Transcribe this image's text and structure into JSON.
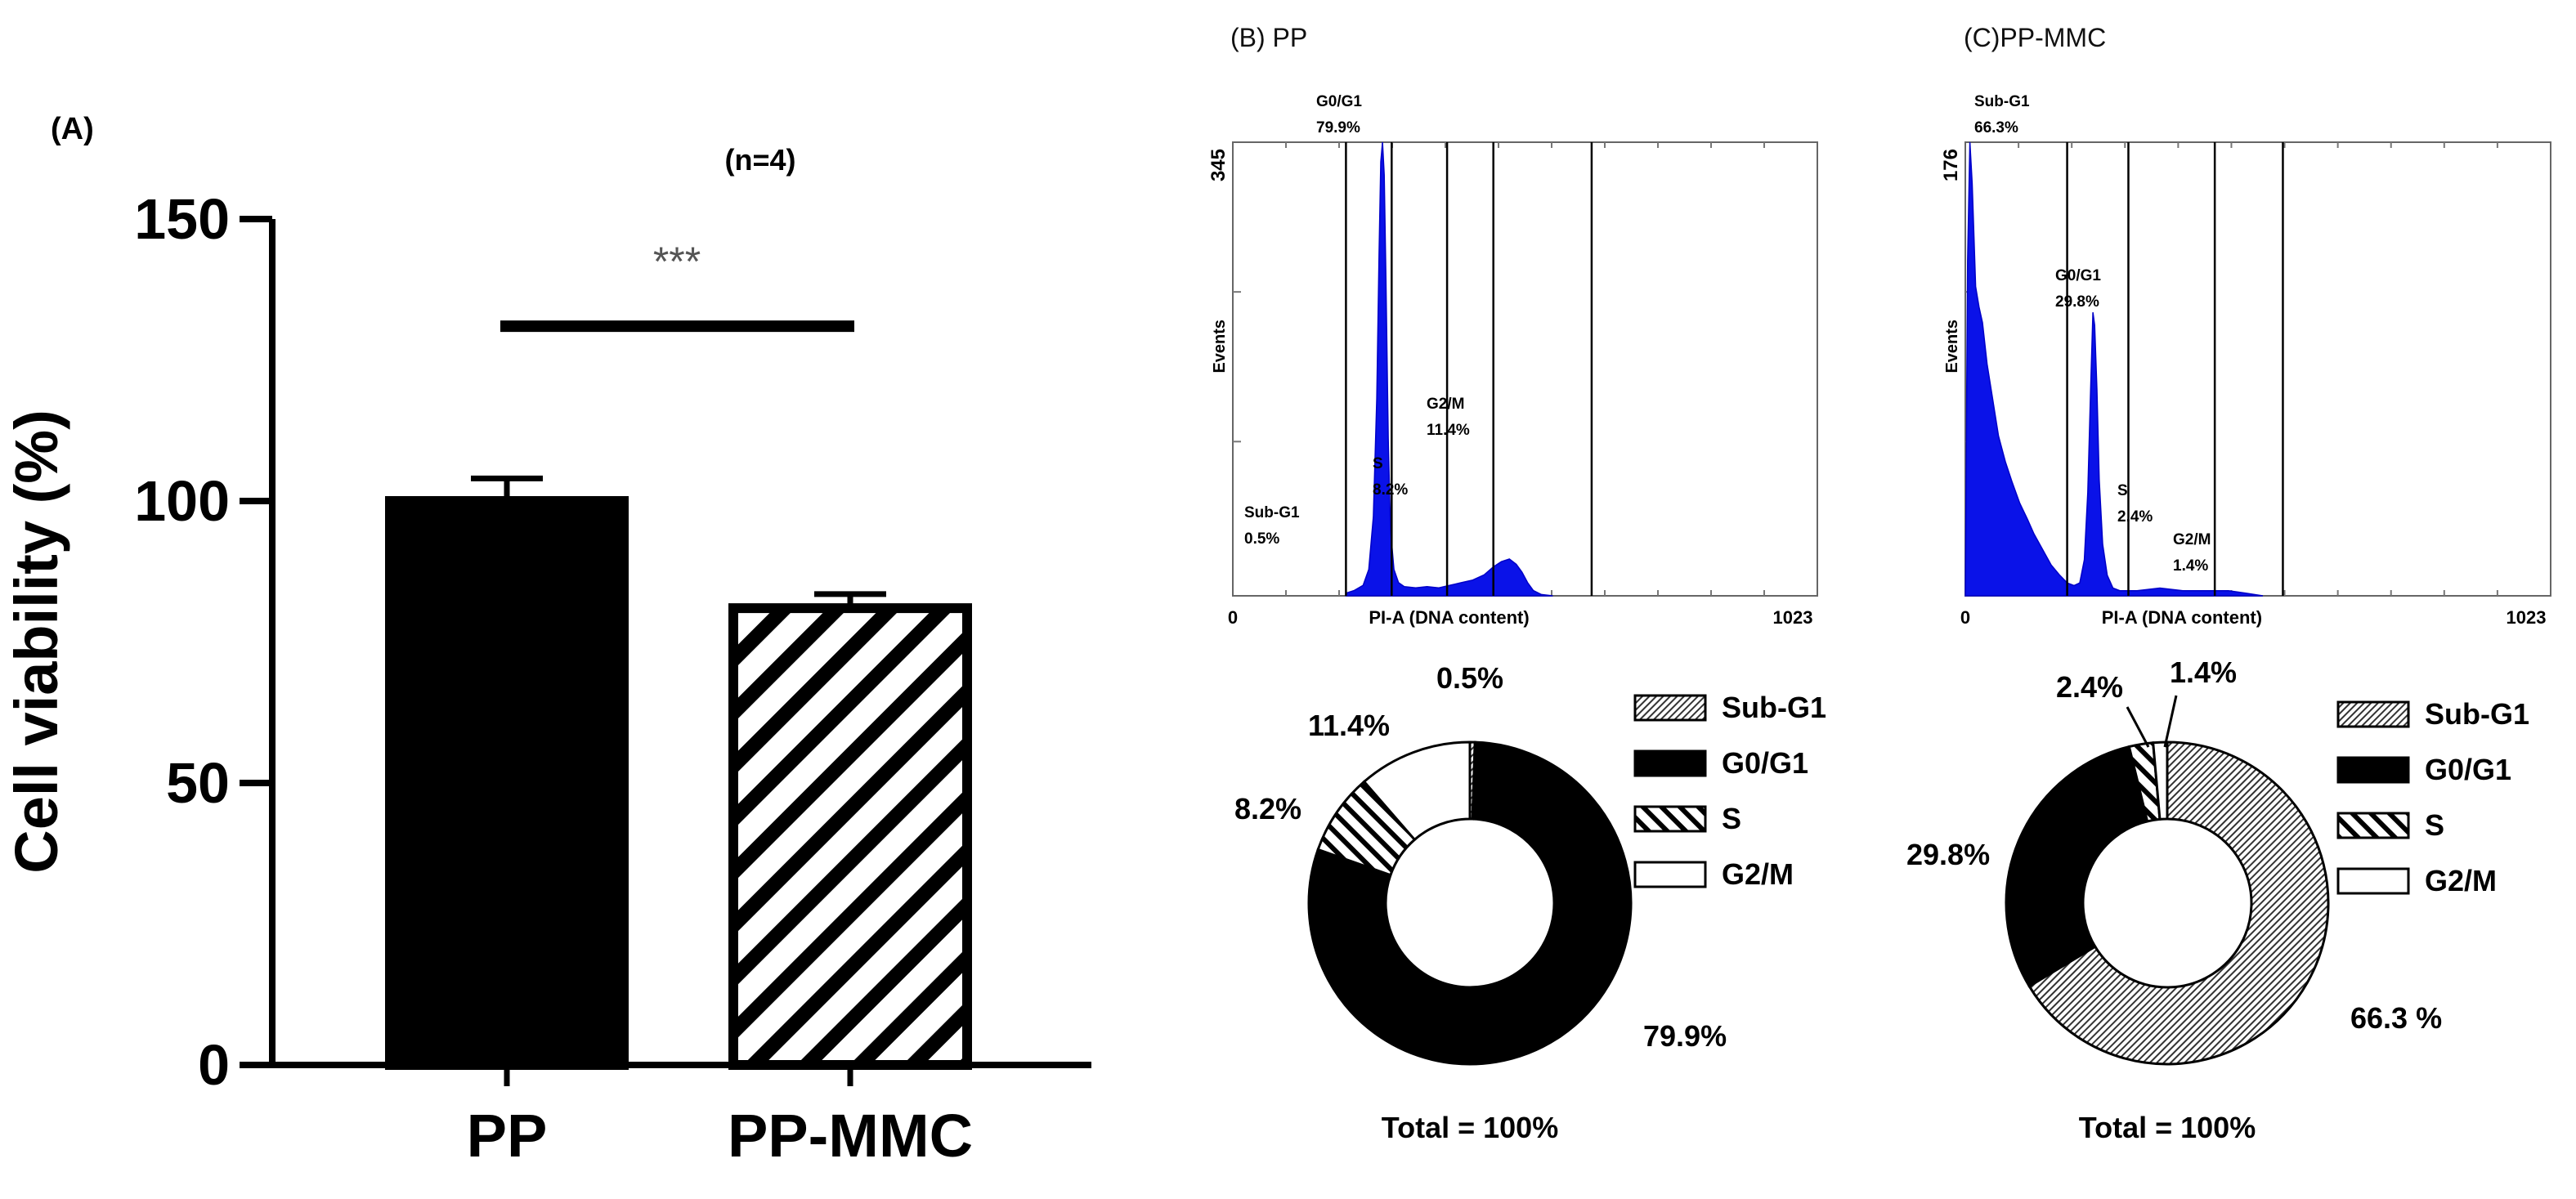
{
  "chart_data": [
    {
      "id": "A",
      "type": "bar",
      "panel_label": "(A)",
      "annotation": "(n=4)",
      "significance": "***",
      "categories": [
        "PP",
        "PP-MMC"
      ],
      "values": [
        100,
        81
      ],
      "errors": [
        4,
        2.5
      ],
      "fills": [
        "solid",
        "diagonal-stripes"
      ],
      "significance_bar_y": 131,
      "ylabel": "Cell viability (%)",
      "ylim": [
        0,
        150
      ],
      "yticks": [
        "0",
        "50",
        "100",
        "150"
      ],
      "ytick_values": [
        0,
        50,
        100,
        150
      ]
    },
    {
      "id": "B",
      "type": "area",
      "title": "(B) PP",
      "ylabel": "Events",
      "xlabel": "PI-A (DNA content)",
      "ymax_label": "345",
      "ymax": 345,
      "x_tick_labels": [
        "0",
        "1023"
      ],
      "xlim": [
        0,
        1023
      ],
      "gates": [
        {
          "label": "Sub-G1",
          "value": "0.5%"
        },
        {
          "label": "G0/G1",
          "value": "79.9%"
        },
        {
          "label": "S",
          "value": "8.2%"
        },
        {
          "label": "G2/M",
          "value": "11.4%"
        }
      ],
      "gate_boundaries": [
        198,
        278,
        375,
        456,
        628
      ],
      "histogram": [
        [
          198,
          2
        ],
        [
          212,
          4
        ],
        [
          228,
          8
        ],
        [
          238,
          20
        ],
        [
          246,
          60
        ],
        [
          252,
          150
        ],
        [
          256,
          260
        ],
        [
          259,
          330
        ],
        [
          262,
          345
        ],
        [
          265,
          320
        ],
        [
          268,
          240
        ],
        [
          272,
          120
        ],
        [
          276,
          50
        ],
        [
          282,
          20
        ],
        [
          290,
          10
        ],
        [
          300,
          7
        ],
        [
          320,
          6
        ],
        [
          340,
          7
        ],
        [
          360,
          6
        ],
        [
          380,
          8
        ],
        [
          400,
          10
        ],
        [
          420,
          12
        ],
        [
          440,
          16
        ],
        [
          456,
          22
        ],
        [
          470,
          26
        ],
        [
          484,
          28
        ],
        [
          496,
          24
        ],
        [
          506,
          18
        ],
        [
          516,
          10
        ],
        [
          526,
          4
        ],
        [
          540,
          1
        ],
        [
          560,
          0
        ]
      ]
    },
    {
      "id": "B-pie",
      "type": "pie",
      "donut": true,
      "labels": [
        "Sub-G1",
        "G0/G1",
        "S",
        "G2/M"
      ],
      "values": [
        0.5,
        79.9,
        8.2,
        11.4
      ],
      "value_labels": [
        "0.5%",
        "79.9%",
        "8.2%",
        "11.4%"
      ],
      "fills": [
        "dense-hatch",
        "solid",
        "diagonal-stripes",
        "white"
      ],
      "total_label": "Total = 100%",
      "legend_position": "right"
    },
    {
      "id": "C",
      "type": "area",
      "title": "(C)PP-MMC",
      "ylabel": "Events",
      "xlabel": "PI-A (DNA content)",
      "ymax_label": "176",
      "ymax": 176,
      "x_tick_labels": [
        "0",
        "1023"
      ],
      "xlim": [
        0,
        1023
      ],
      "gates": [
        {
          "label": "Sub-G1",
          "value": "66.3%"
        },
        {
          "label": "G0/G1",
          "value": "29.8%"
        },
        {
          "label": "S",
          "value": "2.4%"
        },
        {
          "label": "G2/M",
          "value": "1.4%"
        }
      ],
      "gate_boundaries": [
        0,
        178,
        285,
        436,
        555
      ],
      "histogram": [
        [
          0,
          0
        ],
        [
          4,
          130
        ],
        [
          8,
          176
        ],
        [
          12,
          160
        ],
        [
          18,
          120
        ],
        [
          24,
          112
        ],
        [
          30,
          106
        ],
        [
          38,
          90
        ],
        [
          48,
          76
        ],
        [
          58,
          62
        ],
        [
          70,
          52
        ],
        [
          82,
          44
        ],
        [
          95,
          36
        ],
        [
          108,
          30
        ],
        [
          120,
          24
        ],
        [
          135,
          18
        ],
        [
          150,
          12
        ],
        [
          165,
          8
        ],
        [
          178,
          5
        ],
        [
          190,
          4
        ],
        [
          200,
          5
        ],
        [
          208,
          14
        ],
        [
          214,
          40
        ],
        [
          219,
          80
        ],
        [
          223,
          110
        ],
        [
          226,
          105
        ],
        [
          230,
          80
        ],
        [
          234,
          45
        ],
        [
          240,
          20
        ],
        [
          248,
          8
        ],
        [
          258,
          3
        ],
        [
          270,
          2
        ],
        [
          300,
          2
        ],
        [
          340,
          3
        ],
        [
          380,
          2
        ],
        [
          420,
          2
        ],
        [
          460,
          2
        ],
        [
          490,
          1
        ],
        [
          520,
          0
        ]
      ]
    },
    {
      "id": "C-pie",
      "type": "pie",
      "donut": true,
      "labels": [
        "Sub-G1",
        "G0/G1",
        "S",
        "G2/M"
      ],
      "values": [
        66.3,
        29.8,
        2.4,
        1.4
      ],
      "value_labels": [
        "66.3%",
        "29.8%",
        "2.4%",
        "1.4%"
      ],
      "display_value_labels": [
        "66.3 %",
        "29.8%",
        "2.4%",
        "1.4%"
      ],
      "fills": [
        "dense-hatch",
        "solid",
        "diagonal-stripes",
        "white"
      ],
      "total_label": "Total = 100%",
      "legend_position": "right"
    }
  ]
}
